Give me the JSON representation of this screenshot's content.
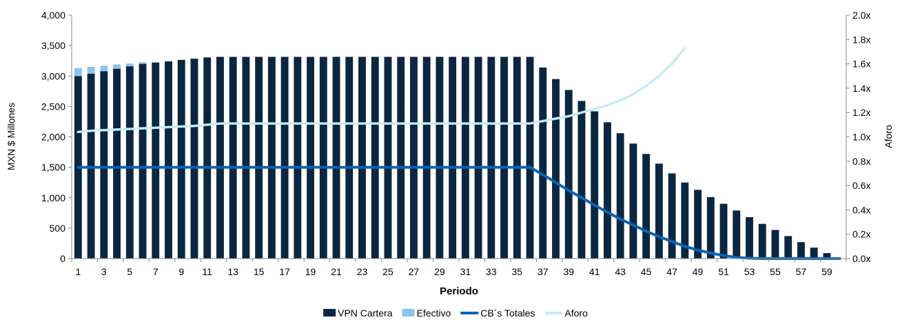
{
  "chart_data": {
    "type": "bar",
    "xlabel": "Periodo",
    "ylabel": "MXN $ Millones",
    "y2label": "Aforo",
    "ylim": [
      0,
      4000
    ],
    "y2lim": [
      0,
      2.0
    ],
    "y_ticks": [
      "0",
      "500",
      "1,000",
      "1,500",
      "2,000",
      "2,500",
      "3,000",
      "3,500",
      "4,000"
    ],
    "y2_ticks": [
      "0.0x",
      "0.2x",
      "0.4x",
      "0.6x",
      "0.8x",
      "1.0x",
      "1.2x",
      "1.4x",
      "1.6x",
      "1.8x",
      "2.0x"
    ],
    "x_tick_labels": [
      "1",
      "3",
      "5",
      "7",
      "9",
      "11",
      "13",
      "15",
      "17",
      "19",
      "21",
      "23",
      "25",
      "27",
      "29",
      "31",
      "33",
      "35",
      "37",
      "39",
      "41",
      "43",
      "45",
      "47",
      "49",
      "51",
      "53",
      "55",
      "57",
      "59"
    ],
    "x": [
      1,
      2,
      3,
      4,
      5,
      6,
      7,
      8,
      9,
      10,
      11,
      12,
      13,
      14,
      15,
      16,
      17,
      18,
      19,
      20,
      21,
      22,
      23,
      24,
      25,
      26,
      27,
      28,
      29,
      30,
      31,
      32,
      33,
      34,
      35,
      36,
      37,
      38,
      39,
      40,
      41,
      42,
      43,
      44,
      45,
      46,
      47,
      48,
      49,
      50,
      51,
      52,
      53,
      54,
      55,
      56,
      57,
      58,
      59,
      60
    ],
    "grid": false,
    "legend_position": "bottom",
    "series": [
      {
        "name": "VPN Cartera",
        "type": "bar",
        "axis": "left",
        "color": "#0b2640",
        "values": [
          3000,
          3040,
          3080,
          3120,
          3160,
          3200,
          3220,
          3240,
          3265,
          3285,
          3305,
          3315,
          3315,
          3315,
          3315,
          3315,
          3315,
          3315,
          3315,
          3315,
          3315,
          3315,
          3315,
          3315,
          3315,
          3315,
          3315,
          3315,
          3315,
          3315,
          3315,
          3315,
          3315,
          3315,
          3315,
          3315,
          3140,
          2950,
          2770,
          2590,
          2420,
          2240,
          2060,
          1890,
          1720,
          1560,
          1400,
          1250,
          1130,
          1010,
          900,
          790,
          680,
          570,
          470,
          370,
          270,
          180,
          90,
          0
        ]
      },
      {
        "name": "Efectivo",
        "type": "bar",
        "axis": "left",
        "color": "#8cc3f0",
        "values": [
          130,
          110,
          90,
          70,
          45,
          25,
          12,
          5,
          0,
          0,
          0,
          0,
          0,
          0,
          0,
          0,
          0,
          0,
          0,
          0,
          0,
          0,
          0,
          0,
          0,
          0,
          0,
          0,
          0,
          0,
          0,
          0,
          0,
          0,
          0,
          0,
          0,
          0,
          0,
          0,
          0,
          0,
          0,
          0,
          0,
          0,
          0,
          0,
          0,
          0,
          0,
          0,
          0,
          0,
          0,
          0,
          0,
          0,
          0,
          0
        ]
      },
      {
        "name": "CB´s Totales",
        "type": "line",
        "axis": "left",
        "color": "#0a64b4",
        "values": [
          1500,
          1500,
          1500,
          1500,
          1500,
          1500,
          1500,
          1500,
          1500,
          1500,
          1500,
          1500,
          1500,
          1500,
          1500,
          1500,
          1500,
          1500,
          1500,
          1500,
          1500,
          1500,
          1500,
          1500,
          1500,
          1500,
          1500,
          1500,
          1500,
          1500,
          1500,
          1500,
          1500,
          1500,
          1500,
          1500,
          1380,
          1250,
          1120,
          1000,
          880,
          760,
          650,
          550,
          450,
          360,
          280,
          200,
          140,
          90,
          50,
          20,
          5,
          0,
          0,
          0,
          0,
          0,
          0,
          0
        ]
      },
      {
        "name": "Aforo",
        "type": "line",
        "axis": "right",
        "color": "#c5ecf5",
        "values": [
          1.04,
          1.05,
          1.055,
          1.06,
          1.065,
          1.07,
          1.075,
          1.08,
          1.085,
          1.09,
          1.1,
          1.11,
          1.11,
          1.11,
          1.11,
          1.11,
          1.11,
          1.11,
          1.11,
          1.11,
          1.11,
          1.11,
          1.11,
          1.11,
          1.11,
          1.11,
          1.11,
          1.11,
          1.11,
          1.11,
          1.11,
          1.11,
          1.11,
          1.11,
          1.11,
          1.11,
          1.13,
          1.15,
          1.17,
          1.2,
          1.23,
          1.26,
          1.3,
          1.35,
          1.42,
          1.5,
          1.6,
          1.73,
          null,
          null,
          null,
          null,
          null,
          null,
          null,
          null,
          null,
          null,
          null,
          null
        ]
      }
    ]
  }
}
